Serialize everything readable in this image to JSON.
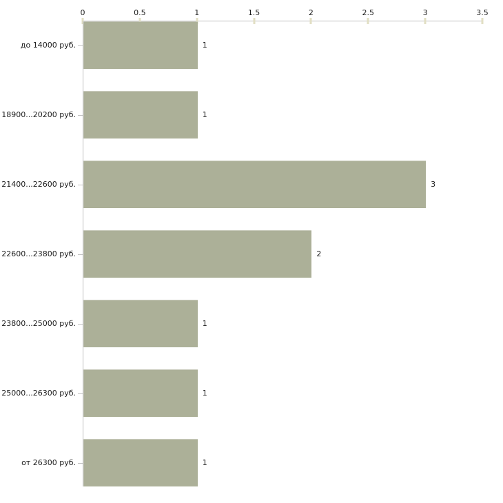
{
  "chart_data": {
    "type": "bar",
    "orientation": "horizontal",
    "title": "",
    "xlabel": "",
    "ylabel": "",
    "categories": [
      "до 14000 руб.",
      "18900...20200 руб.",
      "21400...22600 руб.",
      "22600...23800 руб.",
      "23800...25000 руб.",
      "25000...26300 руб.",
      "от 26300 руб."
    ],
    "values": [
      1,
      1,
      3,
      2,
      1,
      1,
      1
    ],
    "value_labels": [
      "1",
      "1",
      "3",
      "2",
      "1",
      "1",
      "1"
    ],
    "x_ticks": [
      0,
      0.5,
      1,
      1.5,
      2,
      2.5,
      3,
      3.5
    ],
    "x_tick_labels": [
      "0",
      "0.5",
      "1",
      "1.5",
      "2",
      "2.5",
      "3",
      "3.5"
    ],
    "xlim": [
      0,
      3.5
    ],
    "axis_position": "top",
    "grid": false,
    "legend": false,
    "colors": {
      "bar": "#acb098",
      "axis": "#bdbdbd",
      "x_tick": "#e2dfc4",
      "text": "#1a1a1a",
      "background": "#ffffff"
    }
  }
}
